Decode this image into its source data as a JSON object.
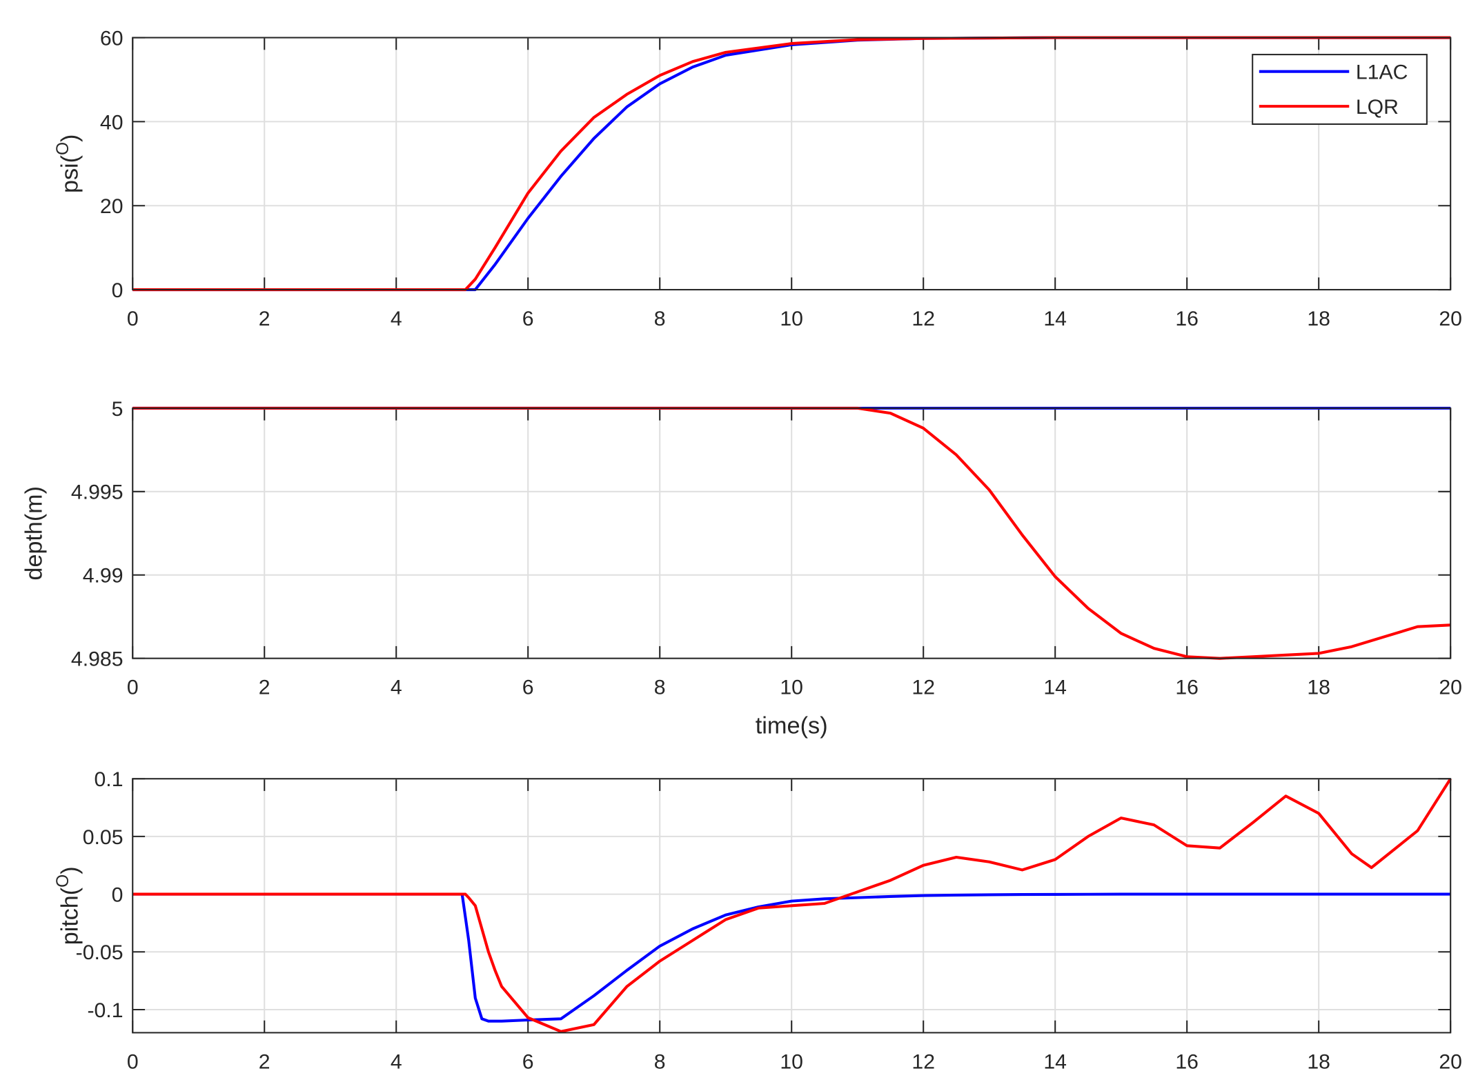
{
  "chart_data": [
    {
      "type": "line",
      "ylabel": [
        "psi(",
        "O",
        ")"
      ],
      "x": [
        0,
        5,
        5.05,
        5.2,
        5.5,
        6,
        6.5,
        7,
        7.5,
        8,
        8.5,
        9,
        10,
        11,
        12,
        14,
        16,
        18,
        20
      ],
      "series": [
        {
          "name": "L1AC",
          "color": "#0000ff",
          "values": [
            0,
            0,
            0,
            0,
            6,
            17,
            27,
            36,
            43.5,
            49,
            53,
            55.8,
            58.3,
            59.4,
            59.8,
            60,
            60,
            60,
            60
          ]
        },
        {
          "name": "LQR",
          "color": "#ff0000",
          "values": [
            0,
            0,
            0,
            2.5,
            10,
            23,
            33,
            41,
            46.5,
            51,
            54.3,
            56.5,
            58.6,
            59.5,
            59.8,
            60,
            60,
            60,
            60
          ]
        }
      ],
      "xlim": [
        0,
        20
      ],
      "xticks": [
        0,
        2,
        4,
        6,
        8,
        10,
        12,
        14,
        16,
        18,
        20
      ],
      "ylim": [
        0,
        60
      ],
      "yticks": [
        0,
        20,
        40,
        60
      ],
      "grid": true,
      "legend": "northeast"
    },
    {
      "type": "line",
      "ylabel": [
        "depth(m)"
      ],
      "xlabel": "time(s)",
      "x": [
        0,
        5,
        7,
        9,
        10,
        11,
        11.5,
        12,
        12.5,
        13,
        13.5,
        14,
        14.5,
        15,
        15.5,
        16,
        16.5,
        17,
        17.5,
        18,
        18.5,
        19,
        19.5,
        20
      ],
      "series": [
        {
          "name": "L1AC",
          "color": "#0000ff",
          "values": [
            5,
            5,
            5,
            5,
            5,
            5,
            5,
            5,
            5,
            5,
            5,
            5,
            5,
            5,
            5,
            5,
            5,
            5,
            5,
            5,
            5,
            5,
            5,
            5
          ]
        },
        {
          "name": "LQR",
          "color": "#ff0000",
          "values": [
            5,
            5,
            5,
            5,
            5,
            5,
            4.9997,
            4.9988,
            4.9972,
            4.9951,
            4.9924,
            4.9899,
            4.988,
            4.9865,
            4.9856,
            4.9851,
            4.985,
            4.9851,
            4.9852,
            4.9853,
            4.9857,
            4.9863,
            4.9869,
            4.987
          ]
        }
      ],
      "xlim": [
        0,
        20
      ],
      "xticks": [
        0,
        2,
        4,
        6,
        8,
        10,
        12,
        14,
        16,
        18,
        20
      ],
      "ylim": [
        4.985,
        5
      ],
      "yticks": [
        4.985,
        4.99,
        4.995,
        5
      ],
      "grid": true
    },
    {
      "type": "line",
      "ylabel": [
        "pitch(",
        "O",
        ")"
      ],
      "x": [
        0,
        5,
        5.05,
        5.1,
        5.2,
        5.3,
        5.4,
        5.5,
        5.6,
        6,
        6.5,
        7,
        7.5,
        8,
        8.5,
        9,
        9.5,
        10,
        10.5,
        11,
        11.5,
        12,
        12.5,
        13,
        13.5,
        14,
        14.5,
        15,
        15.5,
        16,
        16.5,
        17,
        17.5,
        18,
        18.5,
        18.8,
        19.5,
        20
      ],
      "series": [
        {
          "name": "L1AC",
          "color": "#0000ff",
          "values": [
            0,
            0,
            -0.02,
            -0.04,
            -0.09,
            -0.108,
            -0.11,
            -0.11,
            -0.11,
            -0.109,
            -0.108,
            -0.088,
            -0.066,
            -0.045,
            -0.03,
            -0.018,
            -0.011,
            -0.006,
            -0.004,
            -0.003,
            -0.002,
            -0.0012,
            -0.0008,
            -0.0005,
            -0.0003,
            -0.0002,
            -0.0001,
            0,
            0,
            0,
            0,
            0,
            0,
            0,
            0,
            0,
            0,
            0
          ]
        },
        {
          "name": "LQR",
          "color": "#ff0000",
          "values": [
            0,
            0,
            0,
            -0.003,
            -0.01,
            -0.03,
            -0.05,
            -0.066,
            -0.08,
            -0.107,
            -0.119,
            -0.113,
            -0.08,
            -0.058,
            -0.04,
            -0.022,
            -0.012,
            -0.01,
            -0.008,
            0.002,
            0.012,
            0.025,
            0.032,
            0.028,
            0.021,
            0.03,
            0.05,
            0.066,
            0.06,
            0.042,
            0.04,
            0.062,
            0.085,
            0.07,
            0.035,
            0.023,
            0.055,
            0.1
          ]
        }
      ],
      "xlim": [
        0,
        20
      ],
      "xticks": [
        0,
        2,
        4,
        6,
        8,
        10,
        12,
        14,
        16,
        18,
        20
      ],
      "ylim": [
        -0.12,
        0.1
      ],
      "yticks": [
        -0.1,
        -0.05,
        0,
        0.05,
        0.1
      ],
      "grid": true
    }
  ]
}
